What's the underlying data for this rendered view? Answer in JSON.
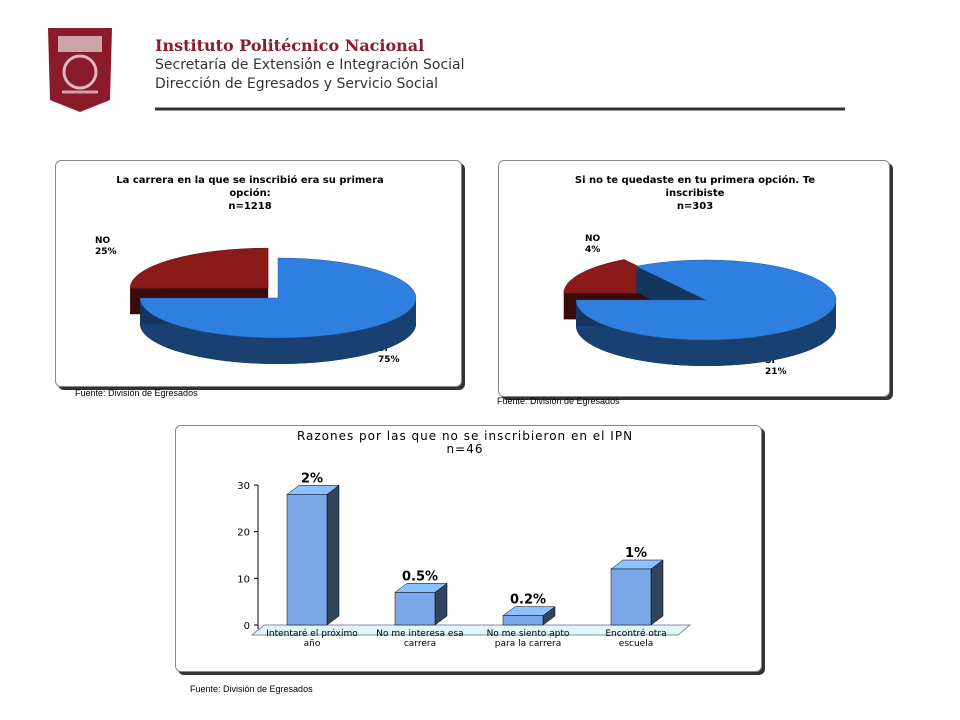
{
  "header": {
    "title": "Instituto Politécnico Nacional",
    "lines": [
      "Secretaría de Extensión e Integración Social",
      "Dirección de Egresados y Servicio Social"
    ]
  },
  "chart_data": [
    {
      "type": "pie",
      "title": "La carrera en la que se inscribió era su primera opción:",
      "subtitle": "n=1218",
      "categories": [
        "NO",
        "SI"
      ],
      "values": [
        25,
        75
      ],
      "value_labels": [
        "25%",
        "75%"
      ],
      "colors": [
        "#8b1a1a",
        "#2f7fe0"
      ],
      "source": "Fuente: División de Egresados"
    },
    {
      "type": "pie",
      "title": "Si no te quedaste en tu primera opción. Te inscribiste",
      "subtitle": "n=303",
      "categories": [
        "NO",
        "SI"
      ],
      "values": [
        4,
        21
      ],
      "value_labels": [
        "4%",
        "21%"
      ],
      "colors": [
        "#8b1a1a",
        "#2f7fe0"
      ],
      "source": "Fuente: División de Egresados"
    },
    {
      "type": "bar",
      "title": "Razones por las que no se inscribieron en el IPN",
      "subtitle": "n=46",
      "categories": [
        "Intentaré el próximo año",
        "No me interesa esa carrera",
        "No me siento apto para la carrera",
        "Encontré otra escuela"
      ],
      "values": [
        28,
        7,
        2,
        12
      ],
      "annotations": [
        "2%",
        "0.5%",
        "0.2%",
        "1%"
      ],
      "color": "#7aa8e8",
      "ylim": [
        0,
        30
      ],
      "yticks": [
        0,
        10,
        20,
        30
      ],
      "source": "Fuente: División de Egresados"
    }
  ]
}
